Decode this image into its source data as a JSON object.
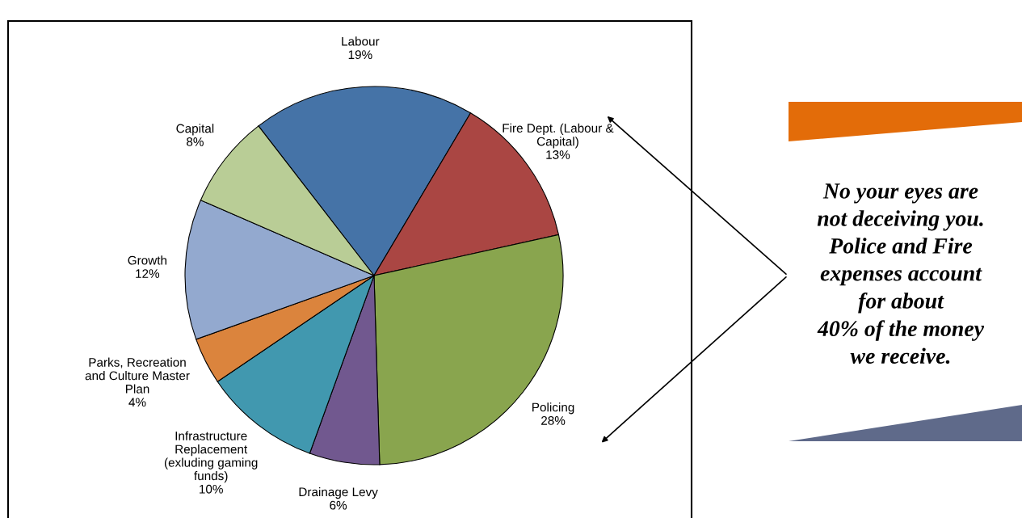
{
  "chart_data": {
    "type": "pie",
    "categories": [
      "Labour",
      "Fire Dept. (Labour &\nCapital)",
      "Policing",
      "Drainage Levy",
      "Infrastructure\nReplacement\n(exluding gaming\nfunds)",
      "Parks, Recreation\nand Culture Master\nPlan",
      "Growth",
      "Capital"
    ],
    "values": [
      19,
      13,
      28,
      6,
      10,
      4,
      12,
      8
    ],
    "colors": [
      "#4573a7",
      "#aa4643",
      "#89a54e",
      "#71588f",
      "#4198af",
      "#db843d",
      "#93a9cf",
      "#b9cd96"
    ],
    "value_labels": [
      "19%",
      "13%",
      "28%",
      "6%",
      "10%",
      "4%",
      "12%",
      "8%"
    ],
    "annotations": [
      "No your eyes are\nnot deceiving you.\nPolice and Fire\nexpenses account\nfor about\n40% of the money\nwe receive."
    ],
    "legend": false
  }
}
